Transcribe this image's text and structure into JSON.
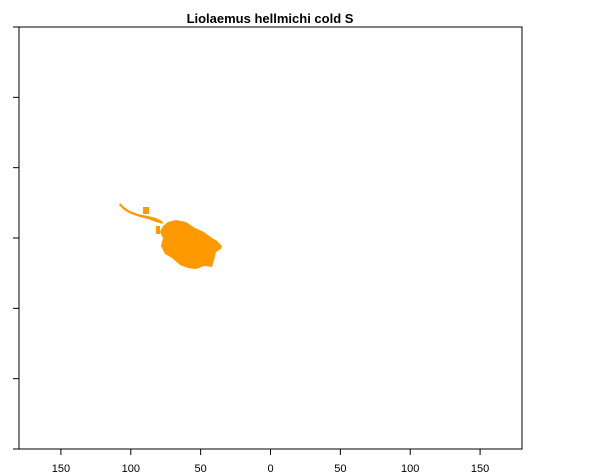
{
  "map": {
    "title": "Liolaemus hellmichi cold S",
    "x_axis": {
      "ticks": [
        -150,
        -100,
        -50,
        0,
        50,
        100,
        150
      ],
      "tick_labels": [
        "150",
        "100",
        "50",
        "0",
        "50",
        "100",
        "150"
      ],
      "range": [
        -180,
        180
      ]
    },
    "y_axis": {
      "ticks": [
        -90,
        -60,
        -30,
        0,
        30,
        60,
        90
      ],
      "range": [
        -90,
        90
      ]
    },
    "range_color": "#ff9900",
    "border_color": "#000000"
  }
}
